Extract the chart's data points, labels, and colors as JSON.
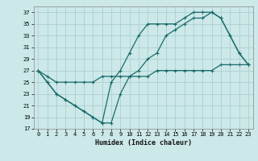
{
  "title": "",
  "xlabel": "Humidex (Indice chaleur)",
  "bg_color": "#cce8e8",
  "grid_color": "#aad0d0",
  "line_color": "#1a6b6b",
  "xlim": [
    -0.5,
    23.5
  ],
  "ylim": [
    17,
    38
  ],
  "yticks": [
    17,
    19,
    21,
    23,
    25,
    27,
    29,
    31,
    33,
    35,
    37
  ],
  "xticks": [
    0,
    1,
    2,
    3,
    4,
    5,
    6,
    7,
    8,
    9,
    10,
    11,
    12,
    13,
    14,
    15,
    16,
    17,
    18,
    19,
    20,
    21,
    22,
    23
  ],
  "series": [
    [
      27,
      25,
      23,
      22,
      21,
      20,
      19,
      18,
      18,
      23,
      26,
      27,
      29,
      30,
      33,
      34,
      35,
      36,
      36,
      37,
      36,
      33,
      30,
      28
    ],
    [
      27,
      25,
      23,
      22,
      21,
      20,
      19,
      18,
      25,
      27,
      30,
      33,
      35,
      35,
      35,
      35,
      36,
      37,
      37,
      37,
      36,
      33,
      30,
      28
    ],
    [
      27,
      26,
      25,
      25,
      25,
      25,
      25,
      26,
      26,
      26,
      26,
      26,
      26,
      27,
      27,
      27,
      27,
      27,
      27,
      27,
      28,
      28,
      28,
      28
    ]
  ]
}
